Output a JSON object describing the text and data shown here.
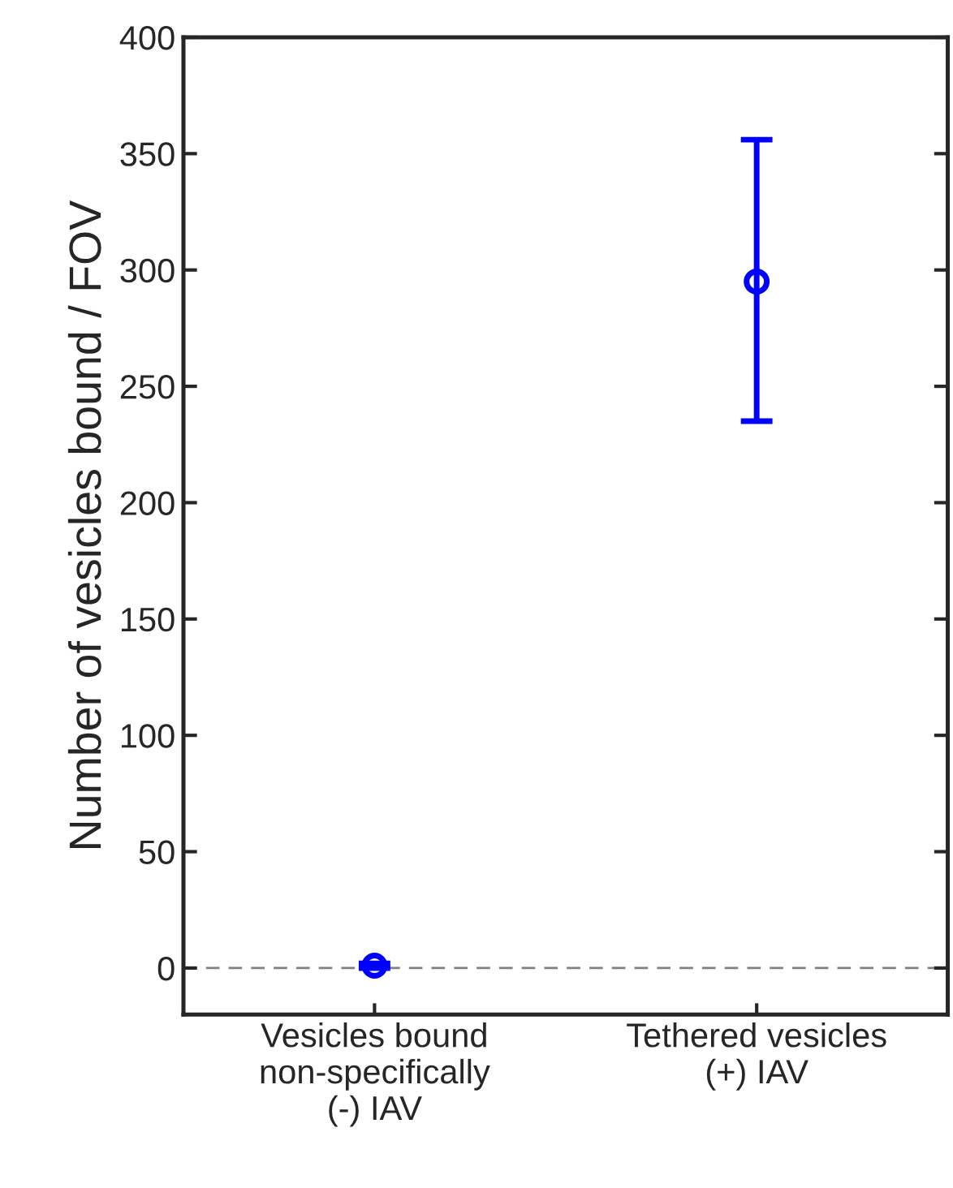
{
  "chart_data": {
    "type": "scatter",
    "ylabel": "Number of vesicles bound / FOV",
    "categories": [
      "Vesicles bound\nnon-specifically\n(-) IAV",
      "Tethered vesicles\n(+) IAV"
    ],
    "series": [
      {
        "color": "#0000ff",
        "values": [
          1,
          295
        ],
        "errors": [
          1,
          [
            235,
            356
          ]
        ]
      }
    ],
    "ylim": [
      -20,
      400
    ],
    "yticks": [
      0,
      50,
      100,
      150,
      200,
      250,
      300,
      350,
      400
    ],
    "ref_lines": [
      {
        "axis": "y",
        "value": 0,
        "color": "#808080",
        "line_style": "dashed"
      }
    ],
    "marker": "circle",
    "grid": false
  }
}
